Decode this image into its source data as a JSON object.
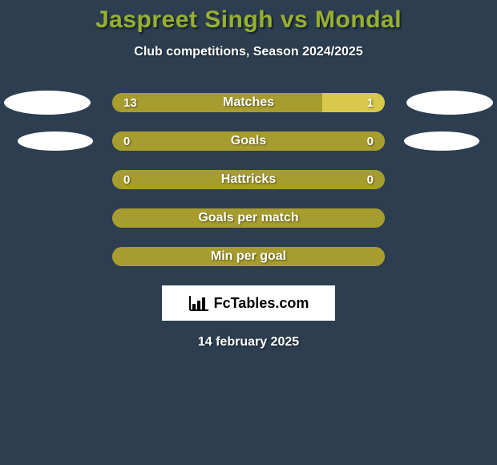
{
  "title": "Jaspreet Singh vs Mondal",
  "subtitle": "Club competitions, Season 2024/2025",
  "colors": {
    "background": "#2c3e50",
    "title": "#97b030",
    "text": "#ffffff",
    "bar_left": "#a79d2e",
    "bar_right": "#d8c84b",
    "bar_full": "#a79d2e",
    "ellipse": "#ffffff",
    "logo_bg": "#ffffff",
    "logo_text": "#000000"
  },
  "stats": [
    {
      "label": "Matches",
      "left_val": "13",
      "right_val": "1",
      "left_pct": 77,
      "right_pct": 23,
      "ellipse_left": "big",
      "ellipse_right": "big"
    },
    {
      "label": "Goals",
      "left_val": "0",
      "right_val": "0",
      "left_pct": 100,
      "right_pct": 0,
      "ellipse_left": "small",
      "ellipse_right": "small"
    },
    {
      "label": "Hattricks",
      "left_val": "0",
      "right_val": "0",
      "left_pct": 100,
      "right_pct": 0,
      "ellipse_left": "none",
      "ellipse_right": "none"
    },
    {
      "label": "Goals per match",
      "left_val": "",
      "right_val": "",
      "left_pct": 100,
      "right_pct": 0,
      "ellipse_left": "none",
      "ellipse_right": "none"
    },
    {
      "label": "Min per goal",
      "left_val": "",
      "right_val": "",
      "left_pct": 100,
      "right_pct": 0,
      "ellipse_left": "none",
      "ellipse_right": "none"
    }
  ],
  "logo": {
    "text": "FcTables.com",
    "icon": "bar-chart-icon"
  },
  "date": "14 february 2025"
}
